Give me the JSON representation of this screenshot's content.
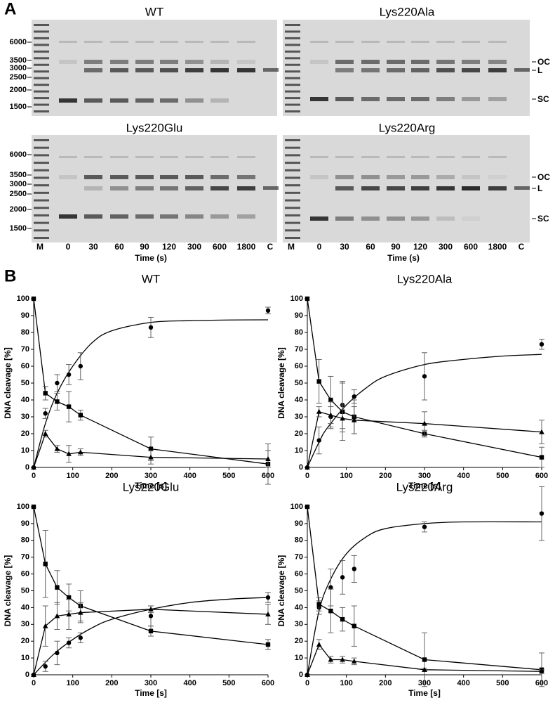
{
  "panel_a": {
    "label": "A",
    "gels": [
      {
        "title": "WT"
      },
      {
        "title": "Lys220Ala"
      },
      {
        "title": "Lys220Glu"
      },
      {
        "title": "Lys220Arg"
      }
    ],
    "marker_sizes": [
      6000,
      3500,
      3000,
      2500,
      2000,
      1500
    ],
    "lanes": [
      "M",
      "0",
      "30",
      "60",
      "90",
      "120",
      "300",
      "600",
      "1800",
      "C"
    ],
    "time_label": "Time (s)",
    "band_labels": [
      "OC",
      "L",
      "SC"
    ]
  },
  "panel_b": {
    "label": "B"
  },
  "chart_data": [
    {
      "type": "scatter",
      "title": "WT",
      "xlabel": "Time [s]",
      "ylabel": "DNA cleavage [%]",
      "x": [
        0,
        30,
        60,
        90,
        120,
        300,
        600
      ],
      "series": [
        {
          "marker": "circle",
          "line": false,
          "values": [
            0,
            32,
            50,
            55,
            60,
            83,
            93
          ],
          "errors": [
            0,
            3,
            5,
            6,
            8,
            6,
            2
          ]
        },
        {
          "marker": "square",
          "line": true,
          "values": [
            100,
            44,
            39,
            36,
            31,
            11,
            2
          ],
          "errors": [
            0,
            4,
            5,
            9,
            3,
            7,
            12
          ]
        },
        {
          "marker": "triangle",
          "line": true,
          "values": [
            0,
            20,
            11,
            8,
            9,
            6,
            5
          ],
          "errors": [
            0,
            2,
            2,
            5,
            2,
            4,
            5
          ]
        }
      ],
      "fit": {
        "x": [
          0,
          30,
          60,
          100,
          150,
          200,
          300,
          400,
          500,
          600
        ],
        "values": [
          0,
          26,
          44,
          60,
          74,
          81,
          86,
          87,
          87.4,
          87.5
        ]
      },
      "xlim": [
        0,
        600
      ],
      "ylim": [
        0,
        100
      ],
      "xticks": [
        0,
        100,
        200,
        300,
        400,
        500,
        600
      ],
      "yticks": [
        0,
        10,
        20,
        30,
        40,
        50,
        60,
        70,
        80,
        90,
        100
      ]
    },
    {
      "type": "scatter",
      "title": "Lys220Ala",
      "xlabel": "Time [s]",
      "ylabel": "DNA cleavage [%]",
      "x": [
        0,
        30,
        60,
        90,
        120,
        300,
        600
      ],
      "series": [
        {
          "marker": "circle",
          "line": false,
          "values": [
            0,
            16,
            30,
            37,
            42,
            54,
            73
          ],
          "errors": [
            0,
            8,
            6,
            14,
            4,
            14,
            3
          ]
        },
        {
          "marker": "square",
          "line": true,
          "values": [
            100,
            51,
            40,
            33,
            30,
            20,
            6
          ],
          "errors": [
            0,
            13,
            14,
            17,
            10,
            2,
            6
          ]
        },
        {
          "marker": "triangle",
          "line": true,
          "values": [
            0,
            33,
            31,
            29,
            28,
            26,
            21
          ],
          "errors": [
            0,
            3,
            8,
            8,
            8,
            7,
            7
          ]
        }
      ],
      "fit": {
        "x": [
          0,
          30,
          50,
          100,
          150,
          200,
          300,
          400,
          500,
          600
        ],
        "values": [
          0,
          15,
          23,
          37,
          47,
          54,
          61,
          64,
          66,
          67
        ]
      },
      "xlim": [
        0,
        600
      ],
      "ylim": [
        0,
        100
      ],
      "xticks": [
        0,
        100,
        200,
        300,
        400,
        500,
        600
      ],
      "yticks": [
        0,
        10,
        20,
        30,
        40,
        50,
        60,
        70,
        80,
        90,
        100
      ]
    },
    {
      "type": "scatter",
      "title": "Lys220Glu",
      "xlabel": "Time [s]",
      "ylabel": "DNA cleavage [%]",
      "x": [
        0,
        30,
        60,
        90,
        120,
        300,
        600
      ],
      "series": [
        {
          "marker": "circle",
          "line": false,
          "values": [
            0,
            5,
            13,
            19,
            22,
            35,
            46
          ],
          "errors": [
            0,
            3,
            7,
            3,
            3,
            6,
            3
          ]
        },
        {
          "marker": "square",
          "line": true,
          "values": [
            100,
            66,
            52,
            46,
            41,
            26,
            18
          ],
          "errors": [
            0,
            20,
            10,
            8,
            9,
            3,
            3
          ]
        },
        {
          "marker": "triangle",
          "line": true,
          "values": [
            0,
            29,
            35,
            36,
            37,
            39,
            36
          ],
          "errors": [
            0,
            12,
            8,
            9,
            6,
            2,
            6
          ]
        }
      ],
      "fit": {
        "x": [
          0,
          50,
          100,
          150,
          200,
          300,
          400,
          500,
          600
        ],
        "values": [
          0,
          12,
          21,
          28,
          33,
          39,
          43,
          45,
          46
        ]
      },
      "xlim": [
        0,
        600
      ],
      "ylim": [
        0,
        100
      ],
      "xticks": [
        0,
        100,
        200,
        300,
        400,
        500,
        600
      ],
      "yticks": [
        0,
        10,
        20,
        30,
        40,
        50,
        60,
        70,
        80,
        90,
        100
      ]
    },
    {
      "type": "scatter",
      "title": "Lys220Arg",
      "xlabel": "Time [s]",
      "ylabel": "DNA cleavage [%]",
      "x": [
        0,
        30,
        60,
        90,
        120,
        300,
        600
      ],
      "series": [
        {
          "marker": "circle",
          "line": false,
          "values": [
            0,
            40,
            52,
            58,
            63,
            88,
            96
          ],
          "errors": [
            0,
            4,
            11,
            10,
            8,
            3,
            16
          ]
        },
        {
          "marker": "square",
          "line": true,
          "values": [
            100,
            42,
            38,
            33,
            29,
            9,
            3
          ],
          "errors": [
            0,
            4,
            13,
            7,
            12,
            16,
            10
          ]
        },
        {
          "marker": "triangle",
          "line": true,
          "values": [
            0,
            18,
            9,
            9,
            8,
            3,
            2
          ],
          "errors": [
            0,
            3,
            2,
            2,
            2,
            1,
            1
          ]
        }
      ],
      "fit": {
        "x": [
          0,
          30,
          60,
          100,
          150,
          200,
          300,
          400,
          600
        ],
        "values": [
          0,
          38,
          57,
          72,
          82,
          87,
          90,
          91,
          91
        ]
      },
      "xlim": [
        0,
        600
      ],
      "ylim": [
        0,
        100
      ],
      "xticks": [
        0,
        100,
        200,
        300,
        400,
        500,
        600
      ],
      "yticks": [
        0,
        10,
        20,
        30,
        40,
        50,
        60,
        70,
        80,
        90,
        100
      ]
    }
  ]
}
